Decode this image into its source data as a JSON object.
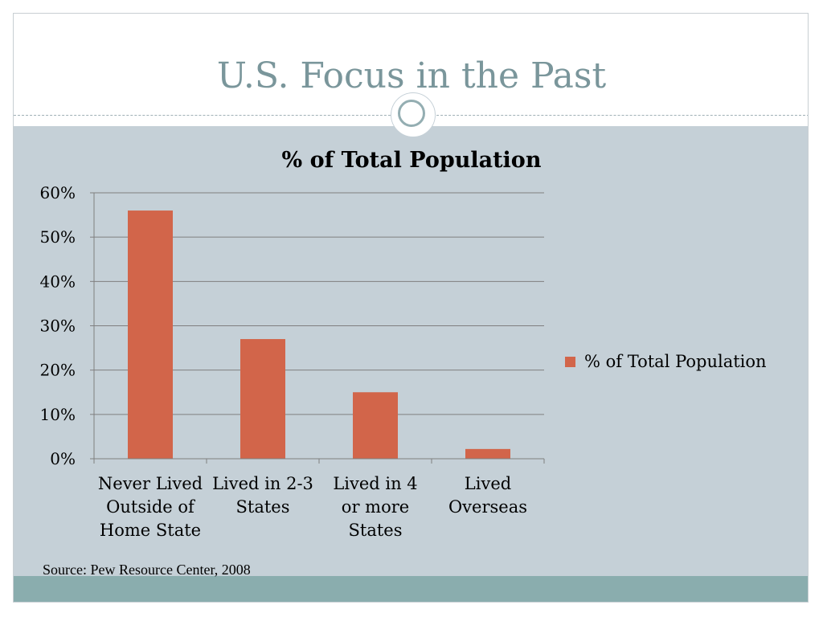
{
  "slide": {
    "title": "U.S. Focus in the Past",
    "source": "Source:  Pew Resource Center, 2008"
  },
  "colors": {
    "title": "#7a969b",
    "content_band": "#c5d0d7",
    "bottom_band": "#8aadae",
    "bar": "#d2654a",
    "gridline": "#7f7f7f"
  },
  "chart_data": {
    "type": "bar",
    "title": "% of Total Population",
    "categories": [
      [
        "Never Lived",
        "Outside of",
        "Home State"
      ],
      [
        "Lived in 2-3",
        "States"
      ],
      [
        "Lived in 4",
        "or more",
        "States"
      ],
      [
        "Lived",
        "Overseas"
      ]
    ],
    "series": [
      {
        "name": "% of Total Population",
        "values": [
          56,
          27,
          15,
          2.2
        ]
      }
    ],
    "ylim": [
      0,
      60
    ],
    "yticks": [
      0,
      10,
      20,
      30,
      40,
      50,
      60
    ],
    "ytick_labels": [
      "0%",
      "10%",
      "20%",
      "30%",
      "40%",
      "50%",
      "60%"
    ],
    "grid": true,
    "legend_position": "right"
  }
}
